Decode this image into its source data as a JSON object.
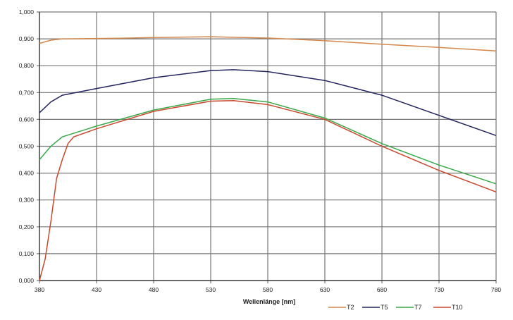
{
  "chart_data": {
    "type": "line",
    "title": "",
    "xlabel": "Wellenlänge [nm]",
    "ylabel": "",
    "xlim": [
      380,
      780
    ],
    "ylim": [
      0,
      1
    ],
    "grid": true,
    "legend_position": "bottom-right",
    "x_ticks": [
      "380",
      "430",
      "480",
      "530",
      "580",
      "630",
      "680",
      "730",
      "780"
    ],
    "y_ticks": [
      "0,000",
      "0,100",
      "0,200",
      "0,300",
      "0,400",
      "0,500",
      "0,600",
      "0,700",
      "0,800",
      "0,900",
      "1,000"
    ],
    "series": [
      {
        "name": "T2",
        "color": "#d4874a",
        "x": [
          380,
          390,
          400,
          450,
          480,
          530,
          580,
          630,
          680,
          730,
          780
        ],
        "y": [
          0.883,
          0.895,
          0.9,
          0.902,
          0.905,
          0.908,
          0.903,
          0.893,
          0.88,
          0.868,
          0.855
        ]
      },
      {
        "name": "T5",
        "color": "#23235e",
        "x": [
          380,
          390,
          400,
          430,
          480,
          530,
          550,
          580,
          630,
          680,
          730,
          780
        ],
        "y": [
          0.625,
          0.665,
          0.69,
          0.715,
          0.755,
          0.782,
          0.785,
          0.778,
          0.745,
          0.69,
          0.615,
          0.54
        ]
      },
      {
        "name": "T7",
        "color": "#3aa84a",
        "x": [
          380,
          390,
          400,
          430,
          480,
          530,
          550,
          580,
          630,
          680,
          730,
          780
        ],
        "y": [
          0.45,
          0.5,
          0.535,
          0.575,
          0.635,
          0.675,
          0.678,
          0.665,
          0.605,
          0.51,
          0.43,
          0.36
        ]
      },
      {
        "name": "T10",
        "color": "#c8482e",
        "x": [
          380,
          385,
          390,
          395,
          400,
          405,
          410,
          430,
          480,
          530,
          550,
          580,
          630,
          680,
          730,
          780
        ],
        "y": [
          0.0,
          0.08,
          0.22,
          0.38,
          0.45,
          0.51,
          0.535,
          0.565,
          0.63,
          0.668,
          0.67,
          0.655,
          0.6,
          0.5,
          0.41,
          0.33
        ]
      }
    ]
  }
}
